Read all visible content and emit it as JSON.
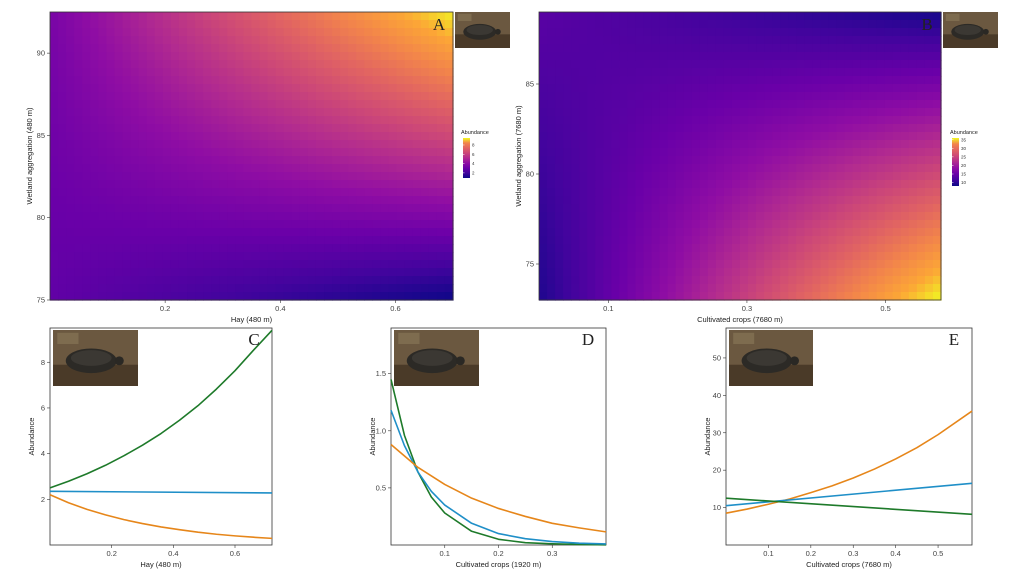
{
  "chart_data": [
    {
      "panel": "A",
      "type": "heatmap",
      "xlabel": "Hay (480 m)",
      "ylabel": "Wetland aggregation (480 m)",
      "xlim": [
        0,
        0.7
      ],
      "ylim": [
        75,
        92.5
      ],
      "xticks": [
        0.2,
        0.4,
        0.6
      ],
      "xtick_labels": [
        "0.2",
        "0.4",
        "0.6"
      ],
      "yticks": [
        75,
        80,
        85,
        90
      ],
      "ytick_labels": [
        "75",
        "80",
        "85",
        "90"
      ],
      "legend": {
        "title": "Abundance",
        "ticks": [
          2,
          4,
          6,
          8
        ],
        "tick_labels": [
          "2",
          "4",
          "6",
          "8"
        ],
        "range": [
          0.9,
          9.5
        ]
      },
      "corners": {
        "top_left": 3.2,
        "top_right": 9.4,
        "bottom_left": 2.6,
        "bottom_right": 0.9
      },
      "colormap": "plasma"
    },
    {
      "panel": "B",
      "type": "heatmap",
      "xlabel": "Cultivated crops (7680 m)",
      "ylabel": "Wetland aggregation (7680 m)",
      "xlim": [
        0,
        0.58
      ],
      "ylim": [
        73,
        89
      ],
      "xticks": [
        0.1,
        0.3,
        0.5
      ],
      "xtick_labels": [
        "0.1",
        "0.3",
        "0.5"
      ],
      "yticks": [
        75,
        80,
        85
      ],
      "ytick_labels": [
        "75",
        "80",
        "85"
      ],
      "legend": {
        "title": "Abundance",
        "ticks": [
          10,
          15,
          20,
          25,
          30,
          35
        ],
        "tick_labels": [
          "10",
          "15",
          "20",
          "25",
          "30",
          "35"
        ],
        "range": [
          8,
          36
        ]
      },
      "corners": {
        "top_left": 13,
        "top_right": 8.5,
        "bottom_left": 9,
        "bottom_right": 36
      },
      "colormap": "plasma"
    },
    {
      "panel": "C",
      "type": "line",
      "xlabel": "Hay (480 m)",
      "ylabel": "Abundance",
      "xlim": [
        0,
        0.72
      ],
      "ylim": [
        0,
        9.5
      ],
      "xticks": [
        0.2,
        0.4,
        0.6
      ],
      "xtick_labels": [
        "0.2",
        "0.4",
        "0.6"
      ],
      "yticks": [
        2,
        4,
        6,
        8
      ],
      "ytick_labels": [
        "2",
        "4",
        "6",
        "8"
      ],
      "series": [
        {
          "color": "#1e7a2a",
          "x": [
            0,
            0.06,
            0.12,
            0.18,
            0.24,
            0.3,
            0.36,
            0.42,
            0.48,
            0.54,
            0.6,
            0.66,
            0.72
          ],
          "values": [
            2.5,
            2.79,
            3.12,
            3.49,
            3.91,
            4.37,
            4.88,
            5.46,
            6.1,
            6.83,
            7.63,
            8.53,
            9.4
          ]
        },
        {
          "color": "#1f8fc8",
          "x": [
            0,
            0.72
          ],
          "values": [
            2.35,
            2.28
          ]
        },
        {
          "color": "#e6861a",
          "x": [
            0,
            0.06,
            0.12,
            0.18,
            0.24,
            0.3,
            0.36,
            0.42,
            0.48,
            0.54,
            0.6,
            0.66,
            0.72
          ],
          "values": [
            2.2,
            1.85,
            1.56,
            1.32,
            1.11,
            0.94,
            0.79,
            0.67,
            0.56,
            0.47,
            0.4,
            0.34,
            0.29
          ]
        }
      ]
    },
    {
      "panel": "D",
      "type": "line",
      "xlabel": "Cultivated crops (1920 m)",
      "ylabel": "Abundance",
      "xlim": [
        0,
        0.4
      ],
      "ylim": [
        0,
        1.9
      ],
      "xticks": [
        0.1,
        0.2,
        0.3
      ],
      "xtick_labels": [
        "0.1",
        "0.2",
        "0.3"
      ],
      "yticks": [
        0.5,
        1.0,
        1.5
      ],
      "ytick_labels": [
        "0.5",
        "1.0",
        "1.5"
      ],
      "series": [
        {
          "color": "#1e7a2a",
          "x": [
            0,
            0.025,
            0.05,
            0.075,
            0.1,
            0.15,
            0.2,
            0.25,
            0.3,
            0.35,
            0.4
          ],
          "values": [
            1.45,
            0.96,
            0.64,
            0.42,
            0.28,
            0.12,
            0.05,
            0.02,
            0.01,
            0.005,
            0.002
          ]
        },
        {
          "color": "#1f8fc8",
          "x": [
            0,
            0.025,
            0.05,
            0.075,
            0.1,
            0.15,
            0.2,
            0.25,
            0.3,
            0.35,
            0.4
          ],
          "values": [
            1.18,
            0.87,
            0.64,
            0.47,
            0.35,
            0.19,
            0.1,
            0.055,
            0.03,
            0.016,
            0.009
          ]
        },
        {
          "color": "#e6861a",
          "x": [
            0,
            0.05,
            0.1,
            0.15,
            0.2,
            0.25,
            0.3,
            0.35,
            0.4
          ],
          "values": [
            0.88,
            0.68,
            0.53,
            0.41,
            0.32,
            0.25,
            0.19,
            0.15,
            0.115
          ]
        }
      ]
    },
    {
      "panel": "E",
      "type": "line",
      "xlabel": "Cultivated crops  (7680 m)",
      "ylabel": "Abundance",
      "xlim": [
        0,
        0.58
      ],
      "ylim": [
        0,
        58
      ],
      "xticks": [
        0.1,
        0.2,
        0.3,
        0.4,
        0.5
      ],
      "xtick_labels": [
        "0.1",
        "0.2",
        "0.3",
        "0.4",
        "0.5"
      ],
      "yticks": [
        10,
        20,
        30,
        40,
        50
      ],
      "ytick_labels": [
        "10",
        "20",
        "30",
        "40",
        "50"
      ],
      "series": [
        {
          "color": "#e6861a",
          "x": [
            0,
            0.05,
            0.1,
            0.15,
            0.2,
            0.25,
            0.3,
            0.35,
            0.4,
            0.45,
            0.5,
            0.58
          ],
          "values": [
            8.5,
            9.6,
            10.9,
            12.3,
            14.0,
            15.8,
            17.9,
            20.3,
            23.0,
            26.0,
            29.5,
            35.8
          ]
        },
        {
          "color": "#1f8fc8",
          "x": [
            0,
            0.58
          ],
          "values": [
            10.5,
            16.5
          ]
        },
        {
          "color": "#1e7a2a",
          "x": [
            0,
            0.58
          ],
          "values": [
            12.5,
            8.2
          ]
        }
      ]
    }
  ],
  "photos": [
    {
      "panel": "A",
      "icon": "turtle-photo-icon"
    },
    {
      "panel": "B",
      "icon": "turtle-photo-icon"
    },
    {
      "panel": "C",
      "icon": "turtle-photo-icon"
    },
    {
      "panel": "D",
      "icon": "turtle-photo-icon"
    },
    {
      "panel": "E",
      "icon": "turtle-photo-icon"
    }
  ]
}
